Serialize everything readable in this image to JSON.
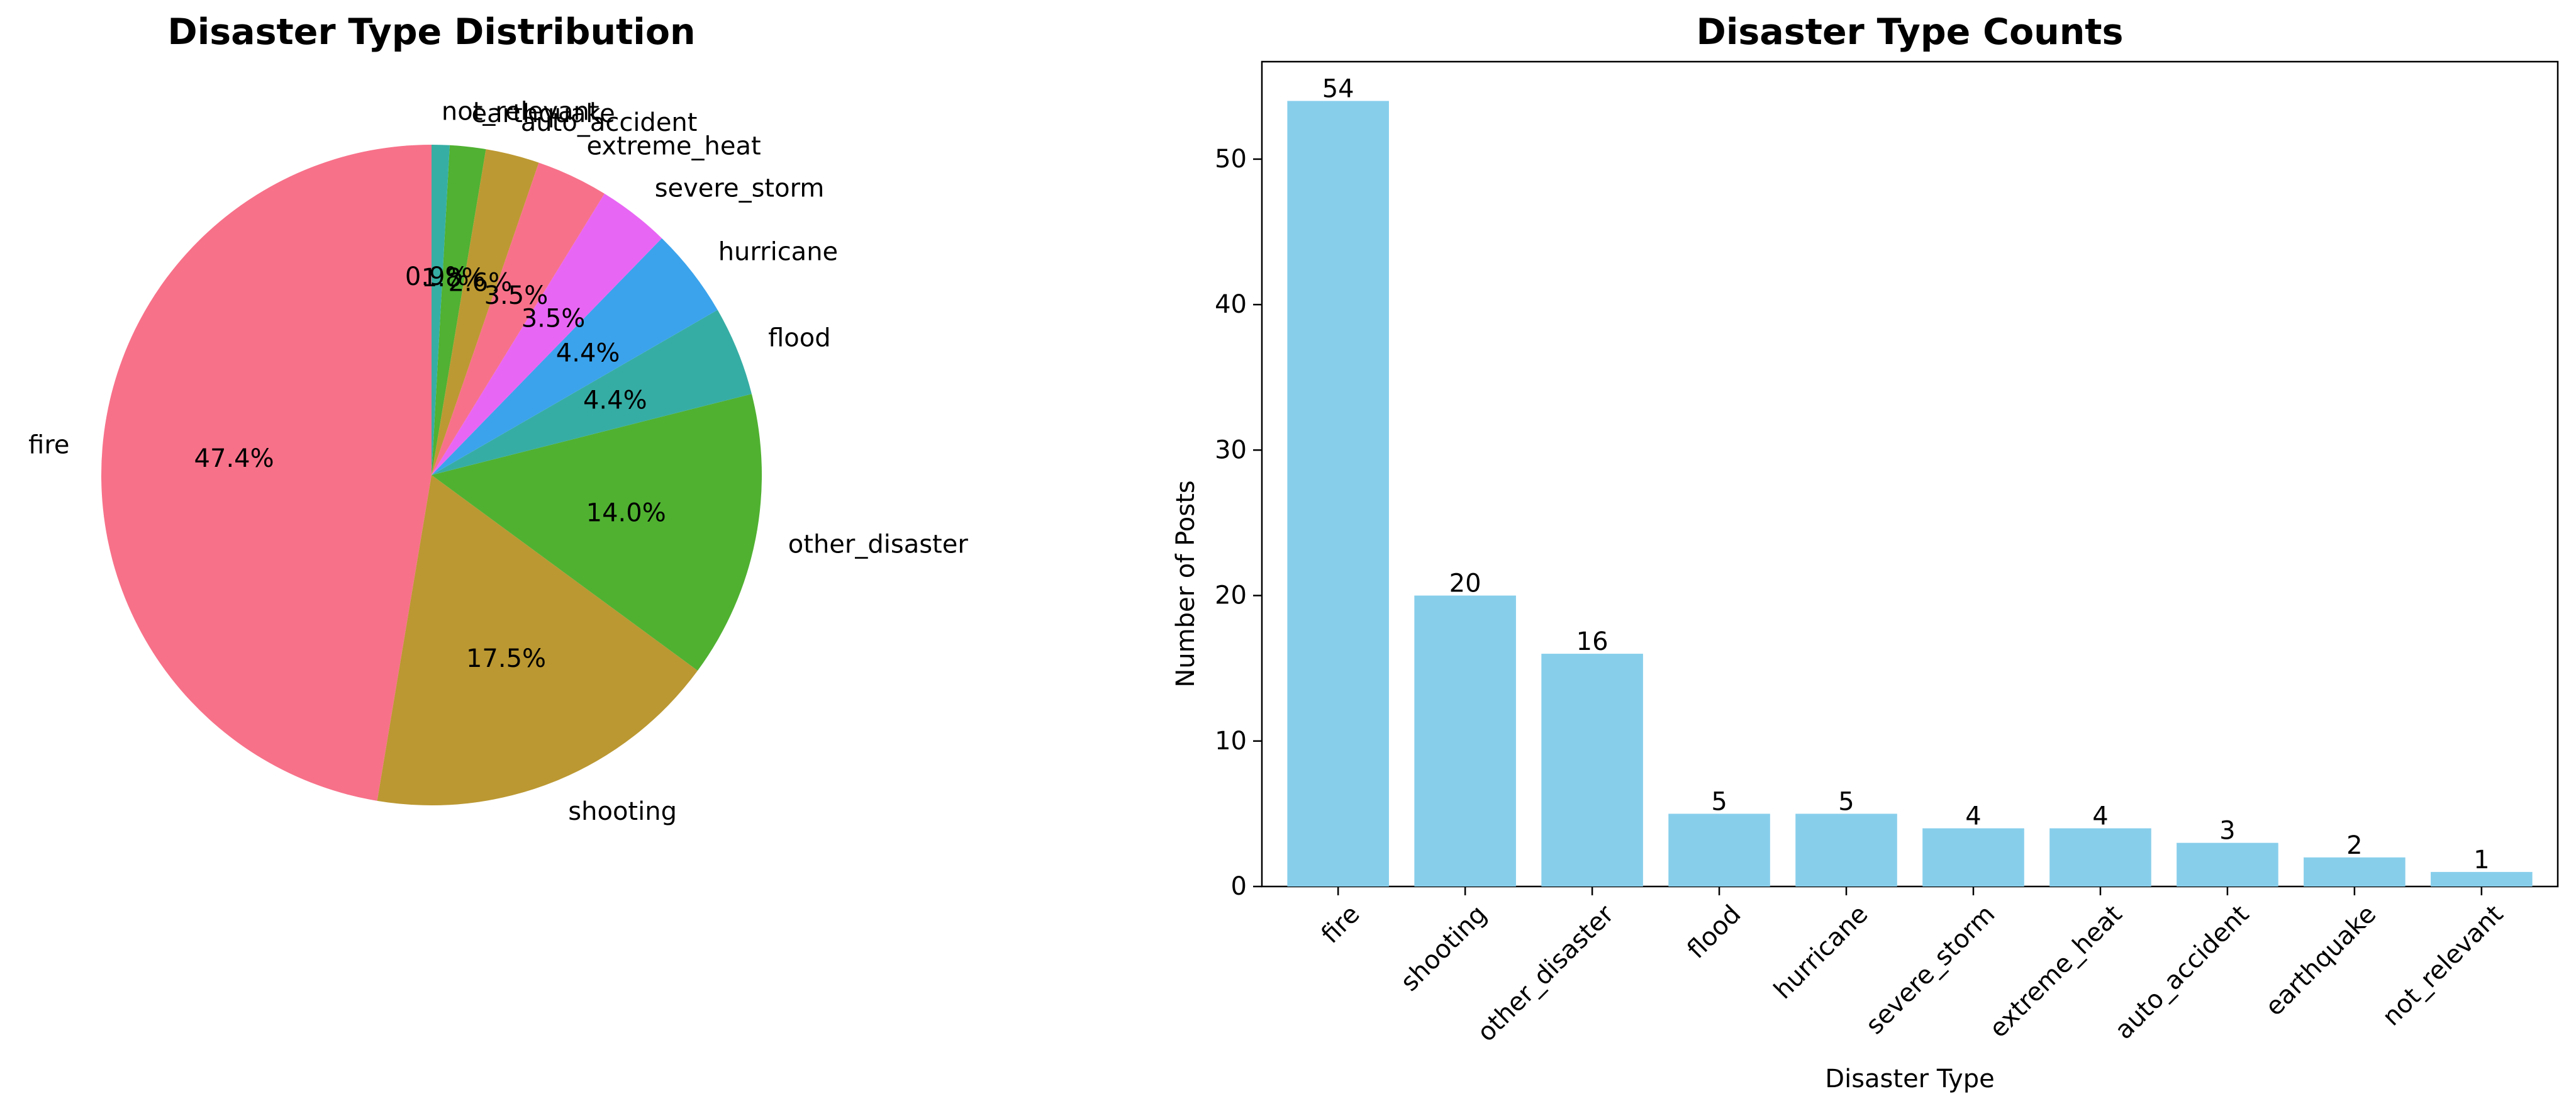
{
  "chart_data": [
    {
      "type": "pie",
      "title": "Disaster Type Distribution",
      "categories": [
        "fire",
        "shooting",
        "other_disaster",
        "flood",
        "hurricane",
        "severe_storm",
        "extreme_heat",
        "auto_accident",
        "earthquake",
        "not_relevant"
      ],
      "values": [
        54,
        20,
        16,
        5,
        5,
        4,
        4,
        3,
        2,
        1
      ],
      "percent_labels": [
        "47.4%",
        "17.5%",
        "14.0%",
        "4.4%",
        "4.4%",
        "3.5%",
        "3.5%",
        "2.6%",
        "1.8%",
        "0.9%"
      ],
      "colors": [
        "#f77189",
        "#bb9832",
        "#50b131",
        "#36ada4",
        "#3ba3ec",
        "#e866f4",
        "#f7718a",
        "#bd9933",
        "#50b132",
        "#36aea4"
      ],
      "start_angle_deg": 90,
      "direction": "counterclockwise"
    },
    {
      "type": "bar",
      "title": "Disaster Type Counts",
      "xlabel": "Disaster Type",
      "ylabel": "Number of Posts",
      "categories": [
        "fire",
        "shooting",
        "other_disaster",
        "flood",
        "hurricane",
        "severe_storm",
        "extreme_heat",
        "auto_accident",
        "earthquake",
        "not_relevant"
      ],
      "values": [
        54,
        20,
        16,
        5,
        5,
        4,
        4,
        3,
        2,
        1
      ],
      "data_labels": [
        "54",
        "20",
        "16",
        "5",
        "5",
        "4",
        "4",
        "3",
        "2",
        "1"
      ],
      "ylim": [
        0,
        56.7
      ],
      "yticks": [
        0,
        10,
        20,
        30,
        40,
        50
      ],
      "bar_color": "#87ceeb",
      "xtick_rotation_deg": 45
    }
  ]
}
